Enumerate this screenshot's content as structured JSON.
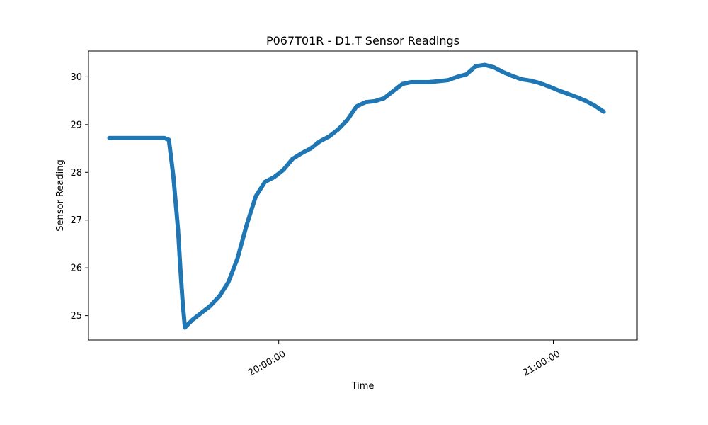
{
  "chart_data": {
    "type": "scatter",
    "title": "P067T01R - D1.T Sensor Readings",
    "xlabel": "Time",
    "ylabel": "Sensor Reading",
    "xlim": [
      "19:18:26",
      "21:18:20"
    ],
    "ylim": [
      24.49,
      30.54
    ],
    "xticks": [
      "20:00:00",
      "21:00:00"
    ],
    "yticks": [
      25,
      26,
      27,
      28,
      29,
      30
    ],
    "grid": false,
    "series": [
      {
        "color": "#1f77b4",
        "points": [
          [
            "19:23:00",
            28.72
          ],
          [
            "19:27:00",
            28.72
          ],
          [
            "19:31:00",
            28.72
          ],
          [
            "19:35:00",
            28.72
          ],
          [
            "19:36:00",
            28.68
          ],
          [
            "19:37:00",
            27.9
          ],
          [
            "19:38:00",
            26.8
          ],
          [
            "19:38:30",
            26.0
          ],
          [
            "19:39:00",
            25.3
          ],
          [
            "19:39:30",
            24.75
          ],
          [
            "19:41:00",
            24.9
          ],
          [
            "19:43:00",
            25.05
          ],
          [
            "19:45:00",
            25.2
          ],
          [
            "19:47:00",
            25.4
          ],
          [
            "19:49:00",
            25.7
          ],
          [
            "19:51:00",
            26.2
          ],
          [
            "19:53:00",
            26.9
          ],
          [
            "19:55:00",
            27.5
          ],
          [
            "19:57:00",
            27.8
          ],
          [
            "19:59:00",
            27.9
          ],
          [
            "20:01:00",
            28.05
          ],
          [
            "20:03:00",
            28.28
          ],
          [
            "20:05:00",
            28.4
          ],
          [
            "20:07:00",
            28.5
          ],
          [
            "20:09:00",
            28.65
          ],
          [
            "20:11:00",
            28.75
          ],
          [
            "20:13:00",
            28.9
          ],
          [
            "20:15:00",
            29.1
          ],
          [
            "20:17:00",
            29.38
          ],
          [
            "20:19:00",
            29.47
          ],
          [
            "20:21:00",
            29.49
          ],
          [
            "20:23:00",
            29.55
          ],
          [
            "20:25:00",
            29.7
          ],
          [
            "20:27:00",
            29.85
          ],
          [
            "20:29:00",
            29.89
          ],
          [
            "20:31:00",
            29.89
          ],
          [
            "20:33:00",
            29.89
          ],
          [
            "20:35:00",
            29.91
          ],
          [
            "20:37:00",
            29.93
          ],
          [
            "20:39:00",
            30.0
          ],
          [
            "20:41:00",
            30.05
          ],
          [
            "20:43:00",
            30.22
          ],
          [
            "20:45:00",
            30.25
          ],
          [
            "20:47:00",
            30.2
          ],
          [
            "20:49:00",
            30.1
          ],
          [
            "20:51:00",
            30.02
          ],
          [
            "20:53:00",
            29.95
          ],
          [
            "20:55:00",
            29.92
          ],
          [
            "20:57:00",
            29.87
          ],
          [
            "20:59:00",
            29.8
          ],
          [
            "21:01:00",
            29.72
          ],
          [
            "21:03:00",
            29.65
          ],
          [
            "21:05:00",
            29.58
          ],
          [
            "21:07:00",
            29.5
          ],
          [
            "21:09:00",
            29.4
          ],
          [
            "21:11:00",
            29.27
          ]
        ]
      }
    ]
  }
}
